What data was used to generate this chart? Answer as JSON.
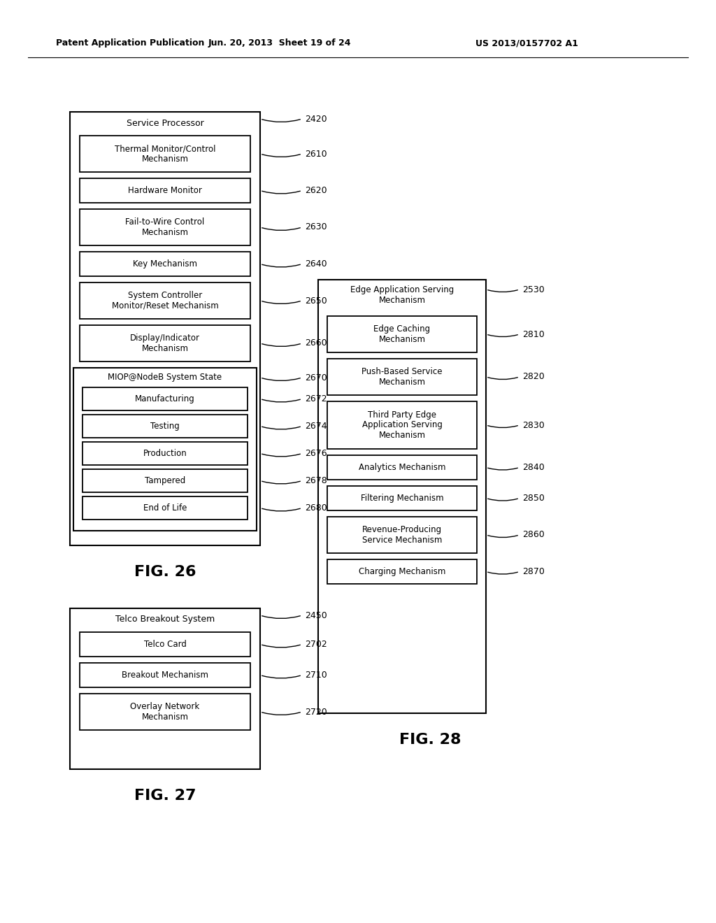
{
  "bg_color": "#ffffff",
  "header_text": "Patent Application Publication",
  "header_date": "Jun. 20, 2013  Sheet 19 of 24",
  "header_patent": "US 2013/0157702 A1",
  "fig26_title": "FIG. 26",
  "fig27_title": "FIG. 27",
  "fig28_title": "FIG. 28"
}
